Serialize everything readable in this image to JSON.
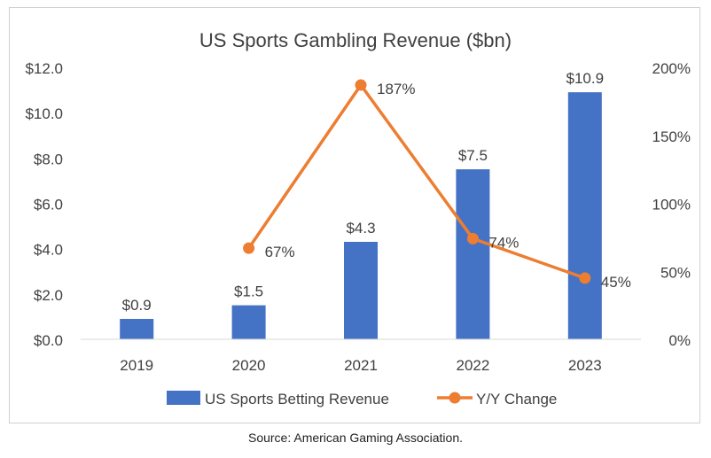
{
  "chart_data": {
    "type": "bar",
    "title": "US Sports Gambling Revenue ($bn)",
    "categories": [
      "2019",
      "2020",
      "2021",
      "2022",
      "2023"
    ],
    "series": [
      {
        "name": "US Sports Betting Revenue",
        "type": "bar",
        "axis": "left",
        "values": [
          0.9,
          1.5,
          4.3,
          7.5,
          10.9
        ],
        "labels": [
          "$0.9",
          "$1.5",
          "$4.3",
          "$7.5",
          "$10.9"
        ],
        "color": "#4472C4"
      },
      {
        "name": "Y/Y Change",
        "type": "line",
        "axis": "right",
        "values": [
          null,
          67,
          187,
          74,
          45
        ],
        "labels": [
          "",
          "67%",
          "187%",
          "74%",
          "45%"
        ],
        "color": "#ED7D31"
      }
    ],
    "y_left": {
      "ylim": [
        0,
        12
      ],
      "ticks": [
        0,
        2,
        4,
        6,
        8,
        10,
        12
      ],
      "tick_labels": [
        "$0.0",
        "$2.0",
        "$4.0",
        "$6.0",
        "$8.0",
        "$10.0",
        "$12.0"
      ]
    },
    "y_right": {
      "ylim": [
        0,
        200
      ],
      "ticks": [
        0,
        50,
        100,
        150,
        200
      ],
      "tick_labels": [
        "0%",
        "50%",
        "100%",
        "150%",
        "200%"
      ]
    },
    "grid": false,
    "legend": "bottom"
  },
  "source_text": "Source: American Gaming Association."
}
